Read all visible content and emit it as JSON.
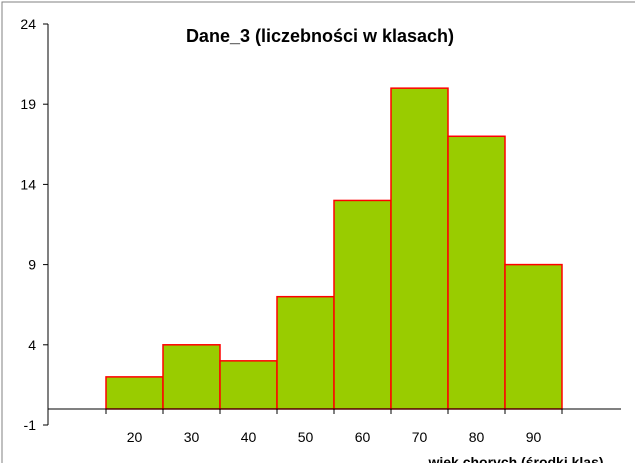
{
  "chart_data": {
    "type": "bar",
    "title": "Dane_3 (liczebności w klasach)",
    "xlabel": "wiek chorych (środki klas)",
    "ylabel": "",
    "categories": [
      "20",
      "30",
      "40",
      "50",
      "60",
      "70",
      "80",
      "90"
    ],
    "values": [
      2,
      4,
      3,
      7,
      13,
      20,
      17,
      9
    ],
    "ylim": [
      -1,
      24
    ],
    "yticks": [
      "-1",
      "4",
      "9",
      "14",
      "19",
      "24"
    ],
    "bar_color": "#99cc00",
    "bar_edge_color": "#ff0000",
    "grid": false
  }
}
